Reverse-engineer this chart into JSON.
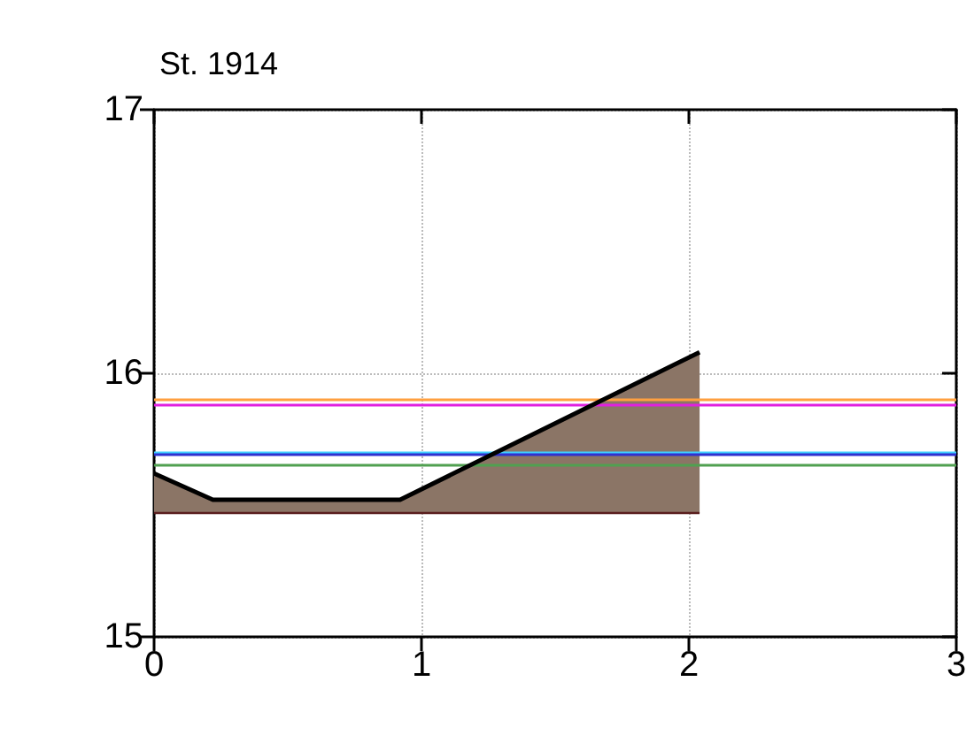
{
  "chart_data": {
    "type": "area",
    "title": "St. 1914",
    "series": [
      {
        "type": "line",
        "color": "#5a1e1e",
        "x": [
          0,
          2.04
        ],
        "values": [
          15.47,
          15.47
        ]
      },
      {
        "type": "area",
        "color": "#8b7566",
        "x": [
          0,
          0.22,
          0.92,
          2.04
        ],
        "values": [
          15.62,
          15.52,
          15.52,
          16.08
        ]
      }
    ],
    "ref_lines": [
      {
        "axis": "y",
        "value": 15.9,
        "color": "#ffa040"
      },
      {
        "axis": "y",
        "value": 15.88,
        "color": "#e020e0"
      },
      {
        "axis": "y",
        "value": 15.7,
        "color": "#40d0ff"
      },
      {
        "axis": "y",
        "value": 15.69,
        "color": "#3030d0"
      },
      {
        "axis": "y",
        "value": 15.65,
        "color": "#50a050"
      }
    ],
    "xlim": [
      0,
      3
    ],
    "xticks": [
      0,
      1,
      2,
      3
    ],
    "ylim": [
      15,
      17
    ],
    "yticks": [
      15,
      16,
      17
    ],
    "grid": true,
    "marker": "none",
    "line_style": "solid"
  }
}
